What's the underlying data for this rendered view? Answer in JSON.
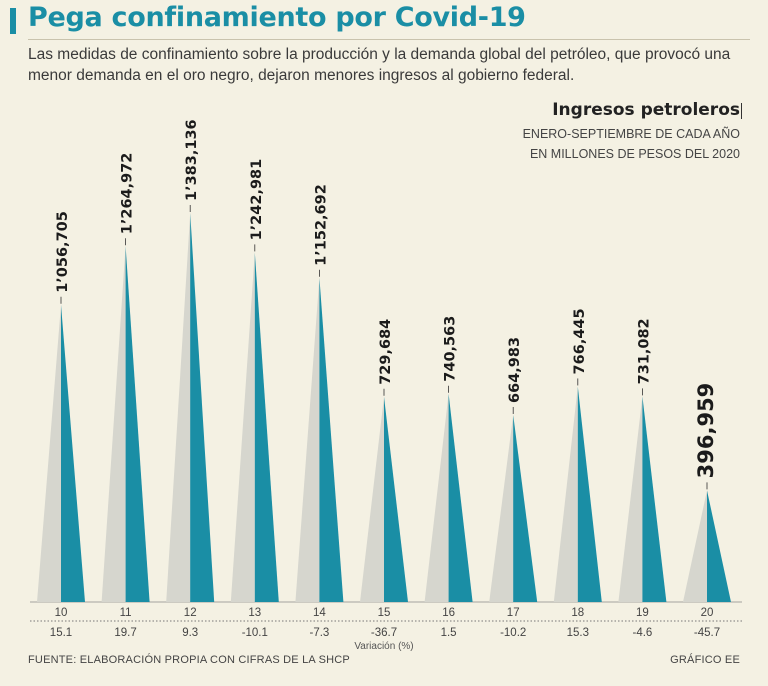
{
  "header": {
    "title": "Pega confinamiento por Covid-19",
    "subtitle": "Las medidas de confinamiento sobre la producción y la demanda global del petróleo, que provocó una menor demanda en el oro negro, dejaron menores ingresos al gobierno federal."
  },
  "chart_title": {
    "main": "Ingresos petroleros",
    "line1": "ENERO-SEPTIEMBRE DE CADA AÑO",
    "line2": "EN MILLONES DE PESOS DEL 2020"
  },
  "colors": {
    "teal": "#1a8ea5",
    "grey": "#d6d6ce",
    "background": "#f4f1e3"
  },
  "chart_data": {
    "type": "bar",
    "title": "Ingresos petroleros",
    "xlabel": "",
    "ylabel": "Millones de pesos del 2020",
    "ylim": [
      0,
      1383136
    ],
    "categories": [
      "10",
      "11",
      "12",
      "13",
      "14",
      "15",
      "16",
      "17",
      "18",
      "19",
      "20"
    ],
    "values": [
      1056705,
      1264972,
      1383136,
      1242981,
      1152692,
      729684,
      740563,
      664983,
      766445,
      731082,
      396959
    ],
    "value_labels": [
      "1’056,705",
      "1’264,972",
      "1’383,136",
      "1’242,981",
      "1’152,692",
      "729,684",
      "740,563",
      "664,983",
      "766,445",
      "731,082",
      "396,959"
    ],
    "variation_label": "Variación (%)",
    "variation": [
      "15.1",
      "19.7",
      "9.3",
      "-10.1",
      "-7.3",
      "-36.7",
      "1.5",
      "-10.2",
      "15.3",
      "-4.6",
      "-45.7"
    ],
    "highlight_index": 10
  },
  "footer": {
    "source": "FUENTE: ELABORACIÓN PROPIA CON CIFRAS DE LA SHCP",
    "credit": "GRÁFICO EE"
  }
}
